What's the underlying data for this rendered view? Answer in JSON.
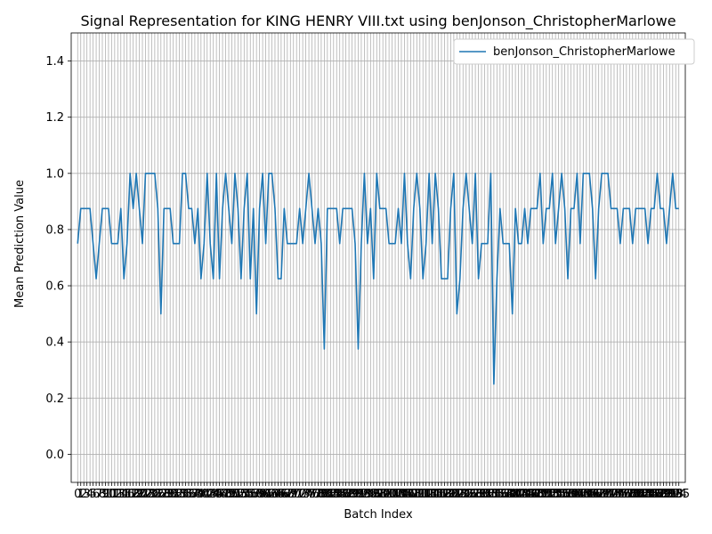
{
  "chart_data": {
    "type": "line",
    "title": "Signal Representation for KING HENRY VIII.txt using benJonson_ChristopherMarlowe",
    "xlabel": "Batch Index",
    "ylabel": "Mean Prediction Value",
    "ylim": [
      -0.1,
      1.5
    ],
    "xlim": [
      -2.1,
      197.1
    ],
    "yticks": [
      0.0,
      0.2,
      0.4,
      0.6,
      0.8,
      1.0,
      1.2,
      1.4
    ],
    "ytick_labels": [
      "0.0",
      "0.2",
      "0.4",
      "0.6",
      "0.8",
      "1.0",
      "1.2",
      "1.4"
    ],
    "grid": true,
    "legend_position": "top-right",
    "series": [
      {
        "name": "benJonson_ChristopherMarlowe",
        "color": "#1f77b4",
        "values": [
          0.75,
          0.875,
          0.875,
          0.875,
          0.875,
          0.75,
          0.625,
          0.75,
          0.875,
          0.875,
          0.875,
          0.75,
          0.75,
          0.75,
          0.875,
          0.625,
          0.75,
          1.0,
          0.875,
          1.0,
          0.875,
          0.75,
          1.0,
          1.0,
          1.0,
          1.0,
          0.875,
          0.5,
          0.875,
          0.875,
          0.875,
          0.75,
          0.75,
          0.75,
          1.0,
          1.0,
          0.875,
          0.875,
          0.75,
          0.875,
          0.625,
          0.75,
          1.0,
          0.75,
          0.625,
          1.0,
          0.625,
          0.875,
          1.0,
          0.875,
          0.75,
          1.0,
          0.875,
          0.625,
          0.875,
          1.0,
          0.625,
          0.875,
          0.5,
          0.875,
          1.0,
          0.75,
          1.0,
          1.0,
          0.875,
          0.625,
          0.625,
          0.875,
          0.75,
          0.75,
          0.75,
          0.75,
          0.875,
          0.75,
          0.875,
          1.0,
          0.875,
          0.75,
          0.875,
          0.75,
          0.375,
          0.875,
          0.875,
          0.875,
          0.875,
          0.75,
          0.875,
          0.875,
          0.875,
          0.875,
          0.75,
          0.375,
          0.75,
          1.0,
          0.75,
          0.875,
          0.625,
          1.0,
          0.875,
          0.875,
          0.875,
          0.75,
          0.75,
          0.75,
          0.875,
          0.75,
          1.0,
          0.75,
          0.625,
          0.875,
          1.0,
          0.875,
          0.625,
          0.75,
          1.0,
          0.75,
          1.0,
          0.875,
          0.625,
          0.625,
          0.625,
          0.875,
          1.0,
          0.5,
          0.625,
          0.875,
          1.0,
          0.875,
          0.75,
          1.0,
          0.625,
          0.75,
          0.75,
          0.75,
          1.0,
          0.25,
          0.625,
          0.875,
          0.75,
          0.75,
          0.75,
          0.5,
          0.875,
          0.75,
          0.75,
          0.875,
          0.75,
          0.875,
          0.875,
          0.875,
          1.0,
          0.75,
          0.875,
          0.875,
          1.0,
          0.75,
          0.875,
          1.0,
          0.875,
          0.625,
          0.875,
          0.875,
          1.0,
          0.75,
          1.0,
          1.0,
          1.0,
          0.875,
          0.625,
          0.875,
          1.0,
          1.0,
          1.0,
          0.875,
          0.875,
          0.875,
          0.75,
          0.875,
          0.875,
          0.875,
          0.75,
          0.875,
          0.875,
          0.875,
          0.875,
          0.75,
          0.875,
          0.875,
          1.0,
          0.875,
          0.875,
          0.75,
          0.875,
          1.0,
          0.875,
          0.875
        ]
      }
    ],
    "xtick_labels_visible": [
      "0",
      "1",
      "2",
      "3",
      "4",
      "5",
      "6",
      "7",
      "8",
      "9",
      "10",
      "11",
      "12",
      "13",
      "14",
      "15",
      "16",
      "17",
      "18",
      "19",
      "20",
      "21",
      "22",
      "23",
      "24",
      "25",
      "26",
      "27",
      "28",
      "29",
      "30",
      "31",
      "32",
      "33",
      "34",
      "35",
      "36",
      "37",
      "38",
      "39",
      "40",
      "41",
      "42",
      "43",
      "44",
      "45",
      "46",
      "47",
      "48",
      "49",
      "50",
      "51",
      "52",
      "53",
      "54",
      "55",
      "56",
      "57",
      "58",
      "59",
      "60",
      "61",
      "62",
      "63",
      "64",
      "65",
      "66",
      "67",
      "68",
      "69",
      "70",
      "71",
      "72",
      "73",
      "74",
      "75",
      "76",
      "77",
      "78",
      "79",
      "80",
      "81",
      "82",
      "83",
      "84",
      "85",
      "86",
      "87",
      "88",
      "89",
      "90",
      "91",
      "92",
      "93",
      "94",
      "95",
      "96",
      "97",
      "98",
      "99",
      "100",
      "101",
      "102",
      "103",
      "104",
      "105",
      "106",
      "107",
      "108",
      "109",
      "110",
      "111",
      "112",
      "113",
      "114",
      "115",
      "116",
      "117",
      "118",
      "119",
      "120",
      "121",
      "122",
      "123",
      "124",
      "125",
      "126",
      "127",
      "128",
      "129",
      "130",
      "131",
      "132",
      "133",
      "134",
      "135",
      "136",
      "137",
      "138",
      "139",
      "140",
      "141",
      "142",
      "143",
      "144",
      "145",
      "146",
      "147",
      "148",
      "149",
      "150",
      "151",
      "152",
      "153",
      "154",
      "155",
      "156",
      "157",
      "158",
      "159",
      "160",
      "161",
      "162",
      "163",
      "164",
      "165",
      "166",
      "167",
      "168",
      "169",
      "170",
      "171",
      "172",
      "173",
      "174",
      "175",
      "176",
      "177",
      "178",
      "179",
      "180",
      "181",
      "182",
      "183",
      "184",
      "185",
      "186",
      "187",
      "188",
      "189",
      "190",
      "191",
      "192",
      "193",
      "194",
      "195"
    ]
  }
}
